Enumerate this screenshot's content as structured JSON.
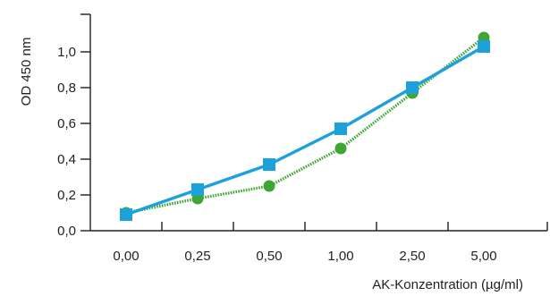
{
  "chart_data": {
    "type": "line",
    "categories": [
      "0,00",
      "0,25",
      "0,50",
      "1,00",
      "2,50",
      "5,00"
    ],
    "y_ticks": [
      "0,0",
      "0,2",
      "0,4",
      "0,6",
      "0,8",
      "1,0"
    ],
    "ylim": [
      0,
      1.2
    ],
    "xlabel": "AK-Konzentration (µg/ml)",
    "ylabel": "OD 450 nm",
    "grid": false,
    "series": [
      {
        "marker": "circle",
        "color": "#3fa535",
        "style": "dotted",
        "values": [
          0.1,
          0.18,
          0.25,
          0.46,
          0.77,
          1.08
        ]
      },
      {
        "marker": "square",
        "color": "#1da1db",
        "style": "solid",
        "values": [
          0.09,
          0.23,
          0.37,
          0.57,
          0.8,
          1.03
        ]
      }
    ]
  }
}
